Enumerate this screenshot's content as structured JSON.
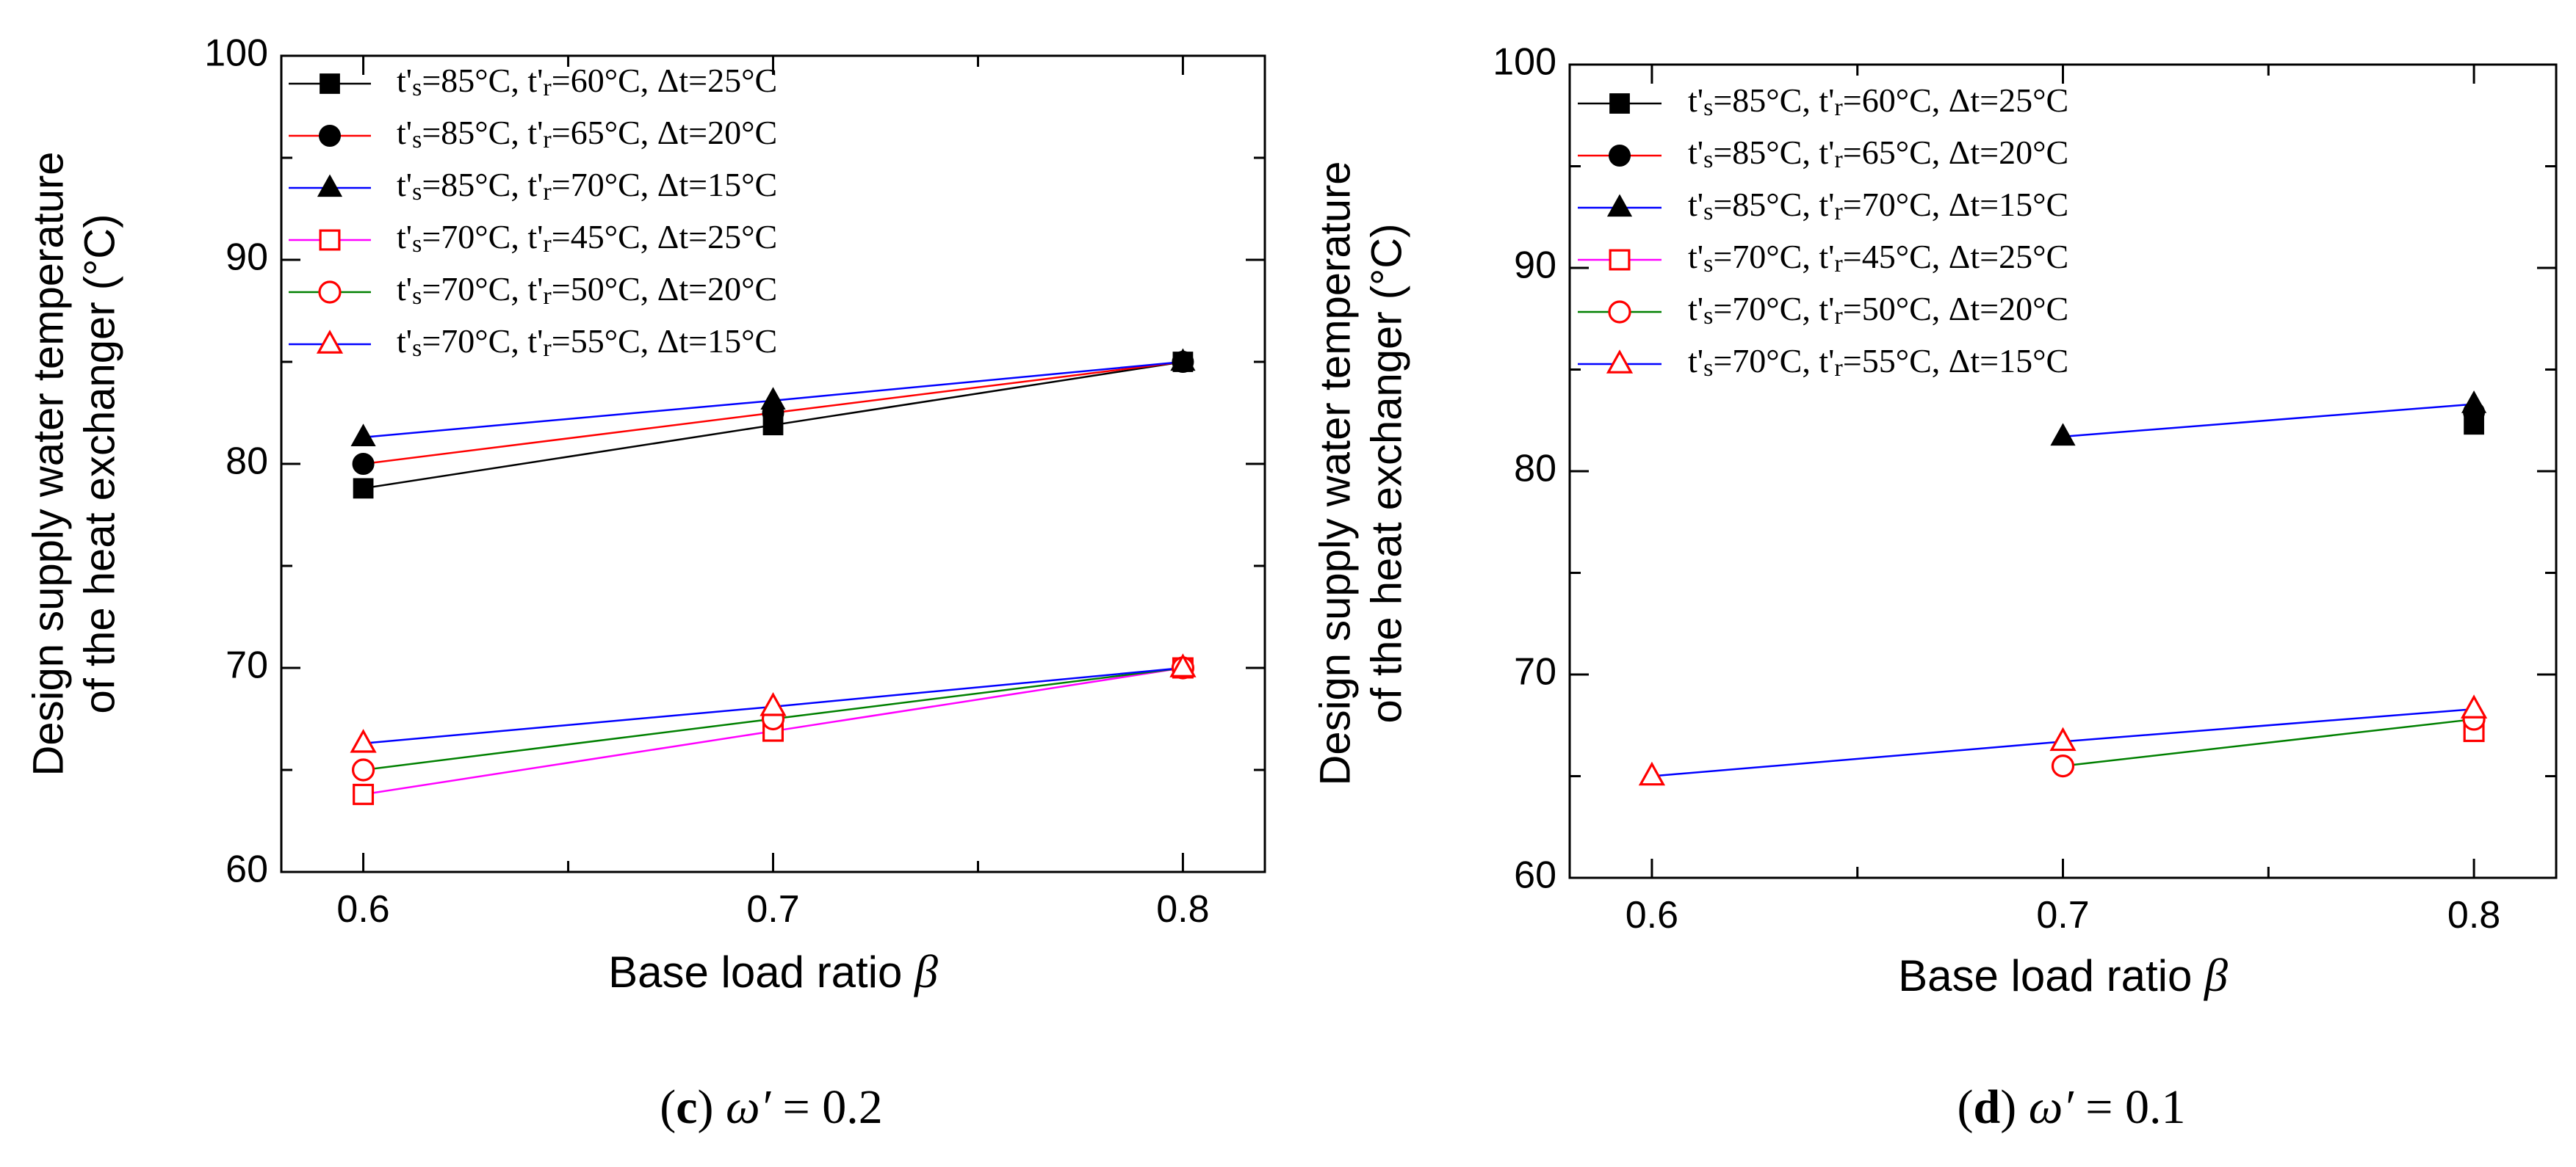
{
  "chart_data": [
    {
      "type": "line",
      "panel_id": "c",
      "caption_letter": "c",
      "caption_symbol": "ω′",
      "caption_value": "= 0.2",
      "xlabel_text": "Base load ratio ",
      "xlabel_symbol": "β",
      "ylabel_line1": "Design supply water temperature",
      "ylabel_line2": "of the heat exchanger (°C)",
      "xlim": [
        0.58,
        0.82
      ],
      "ylim": [
        60,
        100
      ],
      "xticks": [
        0.6,
        0.7,
        0.8
      ],
      "xtick_labels": [
        "0.6",
        "0.7",
        "0.8"
      ],
      "yticks": [
        60,
        70,
        80,
        90,
        100
      ],
      "ytick_labels": [
        "60",
        "70",
        "80",
        "90",
        "100"
      ],
      "legend_position": "top-left",
      "series": [
        {
          "name": "t's=85°C, t'r=60°C, Δt=25°C",
          "ts": "85",
          "tr": "60",
          "dt": "25",
          "line_color": "#000000",
          "marker": "square",
          "filled": true,
          "marker_color": "#000000",
          "x": [
            0.6,
            0.7,
            0.8
          ],
          "y": [
            78.8,
            81.9,
            85.0
          ]
        },
        {
          "name": "t's=85°C, t'r=65°C, Δt=20°C",
          "ts": "85",
          "tr": "65",
          "dt": "20",
          "line_color": "#ff0000",
          "marker": "circle",
          "filled": true,
          "marker_color": "#000000",
          "x": [
            0.6,
            0.7,
            0.8
          ],
          "y": [
            80.0,
            82.5,
            85.0
          ]
        },
        {
          "name": "t's=85°C, t'r=70°C, Δt=15°C",
          "ts": "85",
          "tr": "70",
          "dt": "15",
          "line_color": "#0000ff",
          "marker": "triangle",
          "filled": true,
          "marker_color": "#000000",
          "x": [
            0.6,
            0.7,
            0.8
          ],
          "y": [
            81.3,
            83.1,
            85.0
          ]
        },
        {
          "name": "t's=70°C, t'r=45°C, Δt=25°C",
          "ts": "70",
          "tr": "45",
          "dt": "25",
          "line_color": "#ff00ff",
          "marker": "square",
          "filled": false,
          "marker_color": "#ff0000",
          "x": [
            0.6,
            0.7,
            0.8
          ],
          "y": [
            63.8,
            66.9,
            70.0
          ]
        },
        {
          "name": "t's=70°C, t'r=50°C, Δt=20°C",
          "ts": "70",
          "tr": "50",
          "dt": "20",
          "line_color": "#008000",
          "marker": "circle",
          "filled": false,
          "marker_color": "#ff0000",
          "x": [
            0.6,
            0.7,
            0.8
          ],
          "y": [
            65.0,
            67.5,
            70.0
          ]
        },
        {
          "name": "t's=70°C, t'r=55°C, Δt=15°C",
          "ts": "70",
          "tr": "55",
          "dt": "15",
          "line_color": "#0000ff",
          "marker": "triangle",
          "filled": false,
          "marker_color": "#ff0000",
          "x": [
            0.6,
            0.7,
            0.8
          ],
          "y": [
            66.3,
            68.1,
            70.0
          ]
        }
      ]
    },
    {
      "type": "line",
      "panel_id": "d",
      "caption_letter": "d",
      "caption_symbol": "ω′",
      "caption_value": "= 0.1",
      "xlabel_text": "Base load ratio ",
      "xlabel_symbol": "β",
      "ylabel_line1": "Design supply water temperature",
      "ylabel_line2": "of the heat exchanger (°C)",
      "xlim": [
        0.58,
        0.82
      ],
      "ylim": [
        60,
        100
      ],
      "xticks": [
        0.6,
        0.7,
        0.8
      ],
      "xtick_labels": [
        "0.6",
        "0.7",
        "0.8"
      ],
      "yticks": [
        60,
        70,
        80,
        90,
        100
      ],
      "ytick_labels": [
        "60",
        "70",
        "80",
        "90",
        "100"
      ],
      "legend_position": "top-left",
      "series": [
        {
          "name": "t's=85°C, t'r=60°C, Δt=25°C",
          "ts": "85",
          "tr": "60",
          "dt": "25",
          "line_color": "#000000",
          "marker": "square",
          "filled": true,
          "marker_color": "#000000",
          "x": [
            0.8
          ],
          "y": [
            82.3
          ]
        },
        {
          "name": "t's=85°C, t'r=65°C, Δt=20°C",
          "ts": "85",
          "tr": "65",
          "dt": "20",
          "line_color": "#ff0000",
          "marker": "circle",
          "filled": true,
          "marker_color": "#000000",
          "x": [
            0.8
          ],
          "y": [
            82.9
          ]
        },
        {
          "name": "t's=85°C, t'r=70°C, Δt=15°C",
          "ts": "85",
          "tr": "70",
          "dt": "15",
          "line_color": "#0000ff",
          "marker": "triangle",
          "filled": true,
          "marker_color": "#000000",
          "x": [
            0.7,
            0.8
          ],
          "y": [
            81.7,
            83.3
          ]
        },
        {
          "name": "t's=70°C, t'r=45°C, Δt=25°C",
          "ts": "70",
          "tr": "45",
          "dt": "25",
          "line_color": "#ff00ff",
          "marker": "square",
          "filled": false,
          "marker_color": "#ff0000",
          "x": [
            0.8
          ],
          "y": [
            67.2
          ]
        },
        {
          "name": "t's=70°C, t'r=50°C, Δt=20°C",
          "ts": "70",
          "tr": "50",
          "dt": "20",
          "line_color": "#008000",
          "marker": "circle",
          "filled": false,
          "marker_color": "#ff0000",
          "x": [
            0.7,
            0.8
          ],
          "y": [
            65.5,
            67.8
          ]
        },
        {
          "name": "t's=70°C, t'r=55°C, Δt=15°C",
          "ts": "70",
          "tr": "55",
          "dt": "15",
          "line_color": "#0000ff",
          "marker": "triangle",
          "filled": false,
          "marker_color": "#ff0000",
          "x": [
            0.6,
            0.7,
            0.8
          ],
          "y": [
            65.0,
            66.7,
            68.3
          ]
        }
      ]
    }
  ]
}
